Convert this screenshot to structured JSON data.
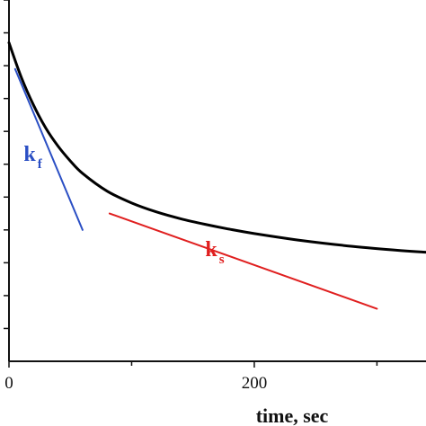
{
  "chart_data": {
    "type": "line",
    "xlabel": "time, sec",
    "ylabel": "",
    "xlim": [
      0,
      340
    ],
    "ylim": [
      0,
      11
    ],
    "x_ticks": [
      0,
      200
    ],
    "y_minor_tick_count": 11,
    "grid": false,
    "series": [
      {
        "color": "#000000",
        "x": [
          0,
          10,
          20,
          30,
          40,
          50,
          60,
          80,
          100,
          120,
          140,
          160,
          180,
          200,
          240,
          280,
          320,
          340
        ],
        "y": [
          9.7,
          8.65,
          7.8,
          7.1,
          6.55,
          6.1,
          5.72,
          5.18,
          4.82,
          4.55,
          4.34,
          4.17,
          4.02,
          3.89,
          3.67,
          3.5,
          3.37,
          3.32
        ]
      },
      {
        "color": "#2b4fc4",
        "x": [
          5,
          60
        ],
        "y": [
          8.9,
          4.0
        ]
      },
      {
        "color": "#e01f1f",
        "x": [
          82,
          300
        ],
        "y": [
          4.5,
          1.6
        ]
      }
    ],
    "annotations": [
      {
        "main": "k",
        "sub": "f",
        "color": "#2b4fc4",
        "x": 12,
        "y": 6.1
      },
      {
        "main": "k",
        "sub": "s",
        "color": "#e01f1f",
        "x": 160,
        "y": 3.2
      }
    ]
  }
}
